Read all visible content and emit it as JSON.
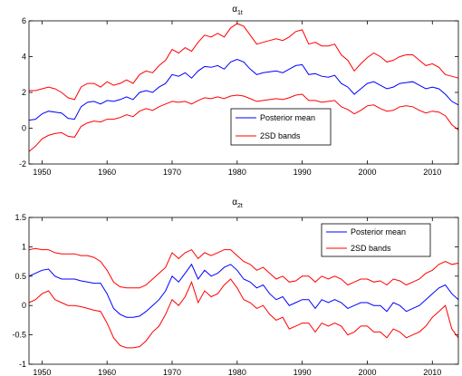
{
  "chart_data": [
    {
      "type": "line",
      "title": "α",
      "title_subscript": "1t",
      "xlabel": "",
      "ylabel": "",
      "xlim": [
        1948,
        2014
      ],
      "ylim": [
        -2,
        6
      ],
      "x_ticks": [
        1950,
        1960,
        1970,
        1980,
        1990,
        2000,
        2010
      ],
      "y_ticks": [
        -2,
        0,
        2,
        4,
        6
      ],
      "y_tick_labels": [
        "-2",
        "0",
        "2",
        "4",
        "6"
      ],
      "grid": false,
      "legend": {
        "position": "center-right",
        "entries": [
          "Posterior mean",
          "2SD bands"
        ]
      },
      "series": [
        {
          "name": "Posterior mean",
          "color": "#0000ff",
          "x": [
            1948,
            1949,
            1950,
            1951,
            1952,
            1953,
            1954,
            1955,
            1956,
            1957,
            1958,
            1959,
            1960,
            1961,
            1962,
            1963,
            1964,
            1965,
            1966,
            1967,
            1968,
            1969,
            1970,
            1971,
            1972,
            1973,
            1974,
            1975,
            1976,
            1977,
            1978,
            1979,
            1980,
            1981,
            1982,
            1983,
            1984,
            1985,
            1986,
            1987,
            1988,
            1989,
            1990,
            1991,
            1992,
            1993,
            1994,
            1995,
            1996,
            1997,
            1998,
            1999,
            2000,
            2001,
            2002,
            2003,
            2004,
            2005,
            2006,
            2007,
            2008,
            2009,
            2010,
            2011,
            2012,
            2013,
            2014
          ],
          "y": [
            0.45,
            0.5,
            0.8,
            0.95,
            0.9,
            0.85,
            0.55,
            0.5,
            1.2,
            1.45,
            1.5,
            1.35,
            1.55,
            1.5,
            1.6,
            1.75,
            1.6,
            2.0,
            2.1,
            2.0,
            2.3,
            2.5,
            3.0,
            2.9,
            3.1,
            2.8,
            3.2,
            3.45,
            3.4,
            3.5,
            3.3,
            3.7,
            3.85,
            3.7,
            3.3,
            3.0,
            3.1,
            3.15,
            3.2,
            3.1,
            3.3,
            3.5,
            3.55,
            3.0,
            3.05,
            2.9,
            2.85,
            2.95,
            2.5,
            2.3,
            1.9,
            2.2,
            2.5,
            2.6,
            2.4,
            2.2,
            2.3,
            2.5,
            2.55,
            2.6,
            2.4,
            2.2,
            2.3,
            2.2,
            1.9,
            1.5,
            1.3
          ]
        },
        {
          "name": "2SD bands",
          "color": "#ff0000",
          "x": [
            1948,
            1949,
            1950,
            1951,
            1952,
            1953,
            1954,
            1955,
            1956,
            1957,
            1958,
            1959,
            1960,
            1961,
            1962,
            1963,
            1964,
            1965,
            1966,
            1967,
            1968,
            1969,
            1970,
            1971,
            1972,
            1973,
            1974,
            1975,
            1976,
            1977,
            1978,
            1979,
            1980,
            1981,
            1982,
            1983,
            1984,
            1985,
            1986,
            1987,
            1988,
            1989,
            1990,
            1991,
            1992,
            1993,
            1994,
            1995,
            1996,
            1997,
            1998,
            1999,
            2000,
            2001,
            2002,
            2003,
            2004,
            2005,
            2006,
            2007,
            2008,
            2009,
            2010,
            2011,
            2012,
            2013,
            2014
          ],
          "y": [
            2.1,
            2.1,
            2.2,
            2.3,
            2.2,
            2.0,
            1.7,
            1.6,
            2.3,
            2.5,
            2.5,
            2.3,
            2.6,
            2.4,
            2.5,
            2.7,
            2.5,
            3.0,
            3.2,
            3.1,
            3.5,
            3.8,
            4.4,
            4.2,
            4.5,
            4.3,
            4.8,
            5.2,
            5.1,
            5.3,
            5.1,
            5.6,
            5.85,
            5.7,
            5.2,
            4.7,
            4.8,
            4.9,
            5.0,
            4.9,
            5.1,
            5.4,
            5.5,
            4.7,
            4.8,
            4.6,
            4.6,
            4.7,
            4.1,
            3.8,
            3.2,
            3.6,
            3.95,
            4.2,
            4.0,
            3.7,
            3.8,
            4.0,
            4.1,
            4.1,
            3.8,
            3.5,
            3.6,
            3.4,
            3.0,
            2.9,
            2.8
          ]
        },
        {
          "color": "#ff0000",
          "x": [
            1948,
            1949,
            1950,
            1951,
            1952,
            1953,
            1954,
            1955,
            1956,
            1957,
            1958,
            1959,
            1960,
            1961,
            1962,
            1963,
            1964,
            1965,
            1966,
            1967,
            1968,
            1969,
            1970,
            1971,
            1972,
            1973,
            1974,
            1975,
            1976,
            1977,
            1978,
            1979,
            1980,
            1981,
            1982,
            1983,
            1984,
            1985,
            1986,
            1987,
            1988,
            1989,
            1990,
            1991,
            1992,
            1993,
            1994,
            1995,
            1996,
            1997,
            1998,
            1999,
            2000,
            2001,
            2002,
            2003,
            2004,
            2005,
            2006,
            2007,
            2008,
            2009,
            2010,
            2011,
            2012,
            2013,
            2014
          ],
          "y": [
            -1.3,
            -1.0,
            -0.6,
            -0.4,
            -0.3,
            -0.25,
            -0.45,
            -0.5,
            0.1,
            0.3,
            0.4,
            0.35,
            0.5,
            0.5,
            0.6,
            0.75,
            0.65,
            0.95,
            1.1,
            1.0,
            1.2,
            1.35,
            1.5,
            1.45,
            1.5,
            1.35,
            1.55,
            1.7,
            1.65,
            1.75,
            1.65,
            1.8,
            1.85,
            1.8,
            1.65,
            1.5,
            1.55,
            1.6,
            1.65,
            1.6,
            1.7,
            1.85,
            1.9,
            1.55,
            1.55,
            1.45,
            1.5,
            1.55,
            1.2,
            1.05,
            0.8,
            1.0,
            1.25,
            1.3,
            1.1,
            0.95,
            1.0,
            1.2,
            1.25,
            1.2,
            1.0,
            0.85,
            0.95,
            0.9,
            0.7,
            0.2,
            -0.1
          ]
        }
      ]
    },
    {
      "type": "line",
      "title": "α",
      "title_subscript": "2t",
      "xlabel": "",
      "ylabel": "",
      "xlim": [
        1948,
        2014
      ],
      "ylim": [
        -1,
        1.5
      ],
      "x_ticks": [
        1950,
        1960,
        1970,
        1980,
        1990,
        2000,
        2010
      ],
      "y_ticks": [
        -1,
        -0.5,
        0,
        0.5,
        1,
        1.5
      ],
      "y_tick_labels": [
        "-1",
        "-0.5",
        "0",
        "0.5",
        "1",
        "1.5"
      ],
      "grid": false,
      "legend": {
        "position": "top-right",
        "entries": [
          "Posterior mean",
          "2SD bands"
        ]
      },
      "series": [
        {
          "name": "Posterior mean",
          "color": "#0000ff",
          "x": [
            1948,
            1949,
            1950,
            1951,
            1952,
            1953,
            1954,
            1955,
            1956,
            1957,
            1958,
            1959,
            1960,
            1961,
            1962,
            1963,
            1964,
            1965,
            1966,
            1967,
            1968,
            1969,
            1970,
            1971,
            1972,
            1973,
            1974,
            1975,
            1976,
            1977,
            1978,
            1979,
            1980,
            1981,
            1982,
            1983,
            1984,
            1985,
            1986,
            1987,
            1988,
            1989,
            1990,
            1991,
            1992,
            1993,
            1994,
            1995,
            1996,
            1997,
            1998,
            1999,
            2000,
            2001,
            2002,
            2003,
            2004,
            2005,
            2006,
            2007,
            2008,
            2009,
            2010,
            2011,
            2012,
            2013,
            2014
          ],
          "y": [
            0.5,
            0.55,
            0.6,
            0.62,
            0.5,
            0.45,
            0.45,
            0.45,
            0.42,
            0.4,
            0.38,
            0.38,
            0.2,
            -0.05,
            -0.15,
            -0.2,
            -0.2,
            -0.18,
            -0.1,
            0.0,
            0.1,
            0.25,
            0.5,
            0.4,
            0.55,
            0.7,
            0.45,
            0.6,
            0.5,
            0.55,
            0.65,
            0.7,
            0.6,
            0.45,
            0.4,
            0.3,
            0.35,
            0.2,
            0.1,
            0.15,
            0.0,
            0.05,
            0.1,
            0.1,
            -0.05,
            0.1,
            0.05,
            0.1,
            0.05,
            -0.05,
            0.0,
            0.05,
            0.05,
            0.0,
            0.0,
            -0.1,
            0.05,
            0.0,
            -0.1,
            -0.05,
            0.0,
            0.1,
            0.2,
            0.3,
            0.35,
            0.2,
            0.1
          ]
        },
        {
          "name": "2SD bands",
          "color": "#ff0000",
          "x": [
            1948,
            1949,
            1950,
            1951,
            1952,
            1953,
            1954,
            1955,
            1956,
            1957,
            1958,
            1959,
            1960,
            1961,
            1962,
            1963,
            1964,
            1965,
            1966,
            1967,
            1968,
            1969,
            1970,
            1971,
            1972,
            1973,
            1974,
            1975,
            1976,
            1977,
            1978,
            1979,
            1980,
            1981,
            1982,
            1983,
            1984,
            1985,
            1986,
            1987,
            1988,
            1989,
            1990,
            1991,
            1992,
            1993,
            1994,
            1995,
            1996,
            1997,
            1998,
            1999,
            2000,
            2001,
            2002,
            2003,
            2004,
            2005,
            2006,
            2007,
            2008,
            2009,
            2010,
            2011,
            2012,
            2013,
            2014
          ],
          "y": [
            0.95,
            0.97,
            0.95,
            0.95,
            0.9,
            0.88,
            0.88,
            0.88,
            0.85,
            0.85,
            0.82,
            0.75,
            0.6,
            0.4,
            0.32,
            0.3,
            0.3,
            0.3,
            0.35,
            0.45,
            0.55,
            0.65,
            0.9,
            0.8,
            0.9,
            0.95,
            0.8,
            0.9,
            0.85,
            0.9,
            0.95,
            0.95,
            0.85,
            0.75,
            0.7,
            0.6,
            0.65,
            0.55,
            0.45,
            0.5,
            0.4,
            0.42,
            0.5,
            0.5,
            0.4,
            0.5,
            0.45,
            0.5,
            0.45,
            0.35,
            0.4,
            0.45,
            0.45,
            0.4,
            0.42,
            0.35,
            0.45,
            0.42,
            0.35,
            0.4,
            0.45,
            0.55,
            0.6,
            0.7,
            0.75,
            0.7,
            0.72
          ]
        },
        {
          "color": "#ff0000",
          "x": [
            1948,
            1949,
            1950,
            1951,
            1952,
            1953,
            1954,
            1955,
            1956,
            1957,
            1958,
            1959,
            1960,
            1961,
            1962,
            1963,
            1964,
            1965,
            1966,
            1967,
            1968,
            1969,
            1970,
            1971,
            1972,
            1973,
            1974,
            1975,
            1976,
            1977,
            1978,
            1979,
            1980,
            1981,
            1982,
            1983,
            1984,
            1985,
            1986,
            1987,
            1988,
            1989,
            1990,
            1991,
            1992,
            1993,
            1994,
            1995,
            1996,
            1997,
            1998,
            1999,
            2000,
            2001,
            2002,
            2003,
            2004,
            2005,
            2006,
            2007,
            2008,
            2009,
            2010,
            2011,
            2012,
            2013,
            2014
          ],
          "y": [
            0.05,
            0.1,
            0.2,
            0.25,
            0.1,
            0.05,
            0.0,
            0.0,
            -0.02,
            -0.05,
            -0.08,
            -0.1,
            -0.3,
            -0.55,
            -0.68,
            -0.72,
            -0.72,
            -0.7,
            -0.6,
            -0.45,
            -0.35,
            -0.15,
            0.1,
            0.0,
            0.15,
            0.4,
            0.05,
            0.25,
            0.15,
            0.2,
            0.35,
            0.45,
            0.3,
            0.1,
            0.05,
            -0.05,
            0.0,
            -0.15,
            -0.25,
            -0.2,
            -0.4,
            -0.35,
            -0.3,
            -0.3,
            -0.45,
            -0.3,
            -0.35,
            -0.3,
            -0.35,
            -0.5,
            -0.45,
            -0.35,
            -0.35,
            -0.45,
            -0.45,
            -0.55,
            -0.4,
            -0.45,
            -0.55,
            -0.5,
            -0.45,
            -0.35,
            -0.2,
            -0.1,
            0.0,
            -0.4,
            -0.55
          ]
        }
      ]
    }
  ]
}
